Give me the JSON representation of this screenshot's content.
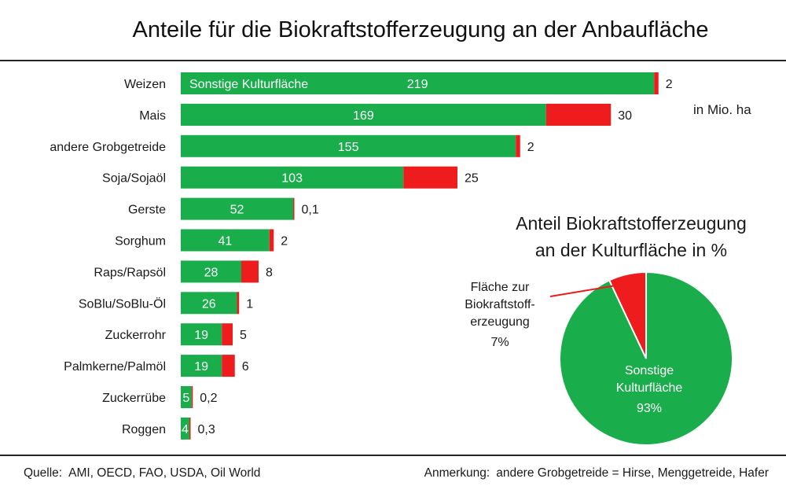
{
  "title": "Anteile für die Biokraftstofferzeugung an der Anbaufläche",
  "unit_label": "in Mio. ha",
  "footer": {
    "source_label": "Quelle:",
    "source_text": "AMI, OECD, FAO, USDA, Oil World",
    "note_label": "Anmerkung:",
    "note_text": "andere Grobgetreide = Hirse, Menggetreide, Hafer"
  },
  "colors": {
    "green": "#1aad4b",
    "red": "#ee1c1c"
  },
  "chart_data": [
    {
      "type": "bar",
      "orientation": "horizontal",
      "stacked": true,
      "categories": [
        "Weizen",
        "Mais",
        "andere Grobgetreide",
        "Soja/Sojaöl",
        "Gerste",
        "Sorghum",
        "Raps/Rapsöl",
        "SoBlu/SoBlu-Öl",
        "Zuckerrohr",
        "Palmkerne/Palmöl",
        "Zuckerrübe",
        "Roggen"
      ],
      "series": [
        {
          "name": "Sonstige Kulturfläche",
          "color": "#1aad4b",
          "values": [
            219,
            169,
            155,
            103,
            52,
            41,
            28,
            26,
            19,
            19,
            5,
            4
          ],
          "labels": [
            "219",
            "169",
            "155",
            "103",
            "52",
            "41",
            "28",
            "26",
            "19",
            "19",
            "5",
            "4"
          ]
        },
        {
          "color": "#ee1c1c",
          "values": [
            2,
            30,
            2,
            25,
            0.1,
            2,
            8,
            1,
            5,
            6,
            0.2,
            0.3
          ],
          "labels": [
            "2",
            "30",
            "2",
            "25",
            "0,1",
            "2",
            "8",
            "1",
            "5",
            "6",
            "0,2",
            "0,3"
          ]
        }
      ],
      "unit": "in Mio. ha"
    },
    {
      "type": "pie",
      "title_lines": [
        "Anteil Biokraftstofferzeugung",
        "an der Kulturfläche in %"
      ],
      "slices": [
        {
          "label_lines": [
            "Fläche zur",
            "Biokraftstoff-",
            "erzeugung",
            "7%"
          ],
          "value": 7,
          "color": "#ee1c1c"
        },
        {
          "label_lines": [
            "Sonstige",
            "Kulturfläche",
            "93%"
          ],
          "value": 93,
          "color": "#1aad4b"
        }
      ]
    }
  ]
}
